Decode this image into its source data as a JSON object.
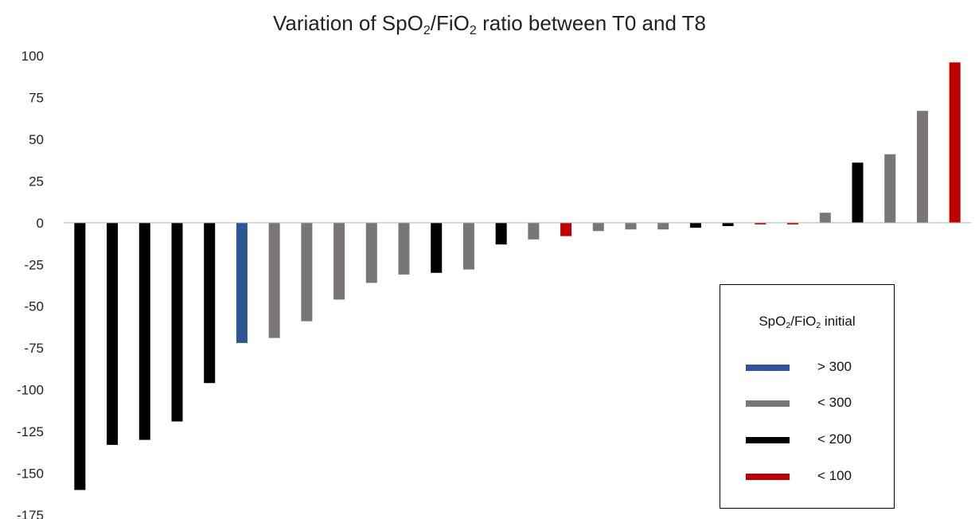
{
  "chart_data": {
    "type": "bar",
    "title_parts": [
      "Variation of SpO",
      "2",
      "/FiO",
      "2",
      " ratio between T0 and T8"
    ],
    "xlabel": "",
    "ylabel": "",
    "ylim": [
      -175,
      100
    ],
    "yticks": [
      100,
      75,
      50,
      25,
      0,
      -25,
      -50,
      -75,
      -100,
      -125,
      -150,
      -175
    ],
    "grid": false,
    "values": [
      -160,
      -133,
      -130,
      -119,
      -96,
      -72,
      -69,
      -59,
      -46,
      -36,
      -31,
      -30,
      -28,
      -13,
      -10,
      -8,
      -5,
      -4,
      -4,
      -3,
      -2,
      -1,
      -1,
      6,
      36,
      41,
      67,
      96
    ],
    "groups": [
      ">300-black",
      "",
      "",
      "",
      "",
      "",
      "",
      "",
      "",
      "",
      "",
      "",
      "",
      "",
      "",
      "",
      "",
      "",
      "",
      "",
      "",
      "",
      "",
      "",
      "",
      "",
      "",
      ""
    ],
    "bar_groups": [
      "<200",
      "<200",
      "<200",
      "<200",
      "<200",
      ">300",
      "<300",
      "<300",
      "<300",
      "<300",
      "<300",
      "<200",
      "<300",
      "<200",
      "<300",
      "<100",
      "<300",
      "<300",
      "<300",
      "<200",
      "<200",
      "<100",
      "<100",
      "<300",
      "<200",
      "<300",
      "<300",
      "<100"
    ],
    "legend": {
      "placement": "bottom-right",
      "title_parts": [
        "SpO",
        "2",
        "/FiO",
        "2",
        " initial"
      ],
      "entries": [
        {
          "key": ">300",
          "label": "> 300",
          "color": "#2e5596"
        },
        {
          "key": "<300",
          "label": "< 300",
          "color": "#7a7677"
        },
        {
          "key": "<200",
          "label": "< 200",
          "color": "#000000"
        },
        {
          "key": "<100",
          "label": "< 100",
          "color": "#c00000"
        }
      ]
    }
  }
}
